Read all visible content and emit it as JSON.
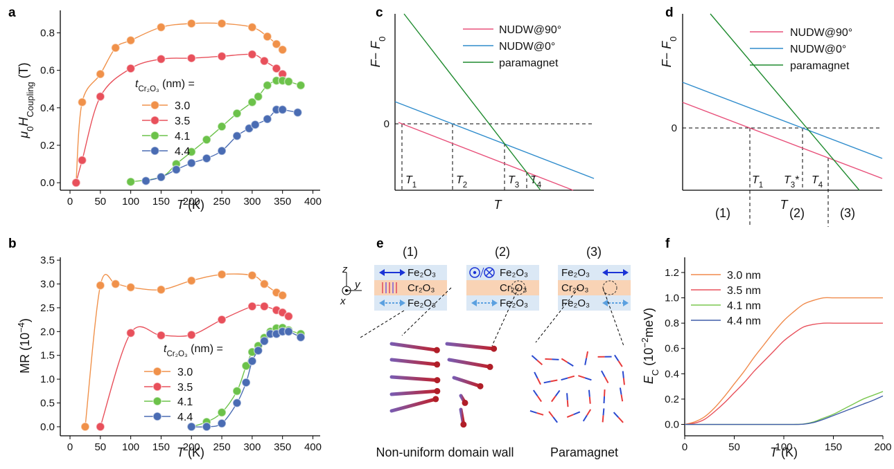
{
  "chart_data": [
    {
      "type": "line",
      "panel": "a",
      "markers": true,
      "xlabel": [
        "T",
        " (K)"
      ],
      "ylabel": [
        "μ",
        "0",
        "H",
        "Coupling",
        " (T)"
      ],
      "legend_title": [
        "t",
        "Cr₂O₃",
        " (nm) ="
      ],
      "xlim": [
        -16,
        412
      ],
      "ylim": [
        -0.04,
        0.92
      ],
      "xticks": [
        0,
        50,
        100,
        150,
        200,
        250,
        300,
        350,
        400
      ],
      "yticks": [
        {
          "value": 0,
          "label": "0.0"
        },
        0.2,
        0.4,
        0.6,
        0.8
      ],
      "series": [
        {
          "name": "3.0",
          "color": "#f0914a",
          "x": [
            10,
            20,
            50,
            75,
            100,
            150,
            200,
            250,
            300,
            325,
            340,
            350
          ],
          "values": [
            0,
            0.43,
            0.58,
            0.72,
            0.76,
            0.83,
            0.85,
            0.85,
            0.83,
            0.78,
            0.74,
            0.71
          ]
        },
        {
          "name": "3.5",
          "color": "#e8505b",
          "x": [
            10,
            20,
            50,
            100,
            150,
            200,
            250,
            300,
            320,
            340,
            350,
            360
          ],
          "values": [
            0,
            0.12,
            0.46,
            0.61,
            0.66,
            0.665,
            0.675,
            0.685,
            0.65,
            0.61,
            0.58,
            0.54
          ]
        },
        {
          "name": "4.1",
          "color": "#6cc24a",
          "x": [
            100,
            150,
            175,
            200,
            225,
            250,
            275,
            300,
            310,
            325,
            340,
            350,
            360,
            380
          ],
          "values": [
            0.005,
            0.03,
            0.1,
            0.165,
            0.23,
            0.3,
            0.37,
            0.43,
            0.46,
            0.52,
            0.545,
            0.545,
            0.54,
            0.52
          ]
        },
        {
          "name": "4.4",
          "color": "#4a6cb3",
          "x": [
            125,
            150,
            175,
            200,
            225,
            250,
            275,
            295,
            305,
            325,
            340,
            350,
            375
          ],
          "values": [
            0.01,
            0.03,
            0.07,
            0.105,
            0.13,
            0.17,
            0.25,
            0.29,
            0.31,
            0.34,
            0.39,
            0.39,
            0.375
          ]
        }
      ]
    },
    {
      "type": "line",
      "panel": "b",
      "markers": true,
      "xlabel": [
        "T",
        " (K)"
      ],
      "ylabel": [
        "MR (10",
        "−4",
        ")"
      ],
      "legend_title": [
        "t",
        "Cr₂O₃",
        " (nm) ="
      ],
      "xlim": [
        -16,
        412
      ],
      "ylim": [
        -0.19,
        3.56
      ],
      "xticks": [
        0,
        50,
        100,
        150,
        200,
        250,
        300,
        350,
        400
      ],
      "yticks": [
        {
          "value": 0,
          "label": "0.0"
        },
        0.5,
        {
          "value": 1,
          "label": "1.0"
        },
        1.5,
        {
          "value": 2,
          "label": "2.0"
        },
        2.5,
        {
          "value": 3,
          "label": "3.0"
        },
        3.5
      ],
      "series": [
        {
          "name": "3.0",
          "color": "#f0914a",
          "x": [
            25,
            50,
            75,
            100,
            150,
            200,
            250,
            300,
            320,
            340,
            350
          ],
          "values": [
            0,
            2.97,
            3.0,
            2.93,
            2.88,
            3.07,
            3.2,
            3.18,
            3.0,
            2.82,
            2.76
          ]
        },
        {
          "name": "3.5",
          "color": "#e8505b",
          "x": [
            50,
            100,
            150,
            200,
            250,
            300,
            320,
            340,
            350,
            360
          ],
          "values": [
            0,
            1.97,
            1.92,
            1.93,
            2.25,
            2.53,
            2.53,
            2.45,
            2.4,
            2.32
          ]
        },
        {
          "name": "4.1",
          "color": "#6cc24a",
          "x": [
            200,
            225,
            250,
            275,
            290,
            300,
            310,
            320,
            330,
            340,
            350,
            360,
            380
          ],
          "values": [
            0,
            0.1,
            0.3,
            0.75,
            1.28,
            1.57,
            1.7,
            1.87,
            2.0,
            2.07,
            2.08,
            2.03,
            1.95
          ]
        },
        {
          "name": "4.4",
          "color": "#4a6cb3",
          "x": [
            200,
            225,
            250,
            275,
            290,
            300,
            310,
            320,
            330,
            340,
            350,
            360,
            380
          ],
          "values": [
            0,
            0,
            0.07,
            0.5,
            0.93,
            1.38,
            1.6,
            1.8,
            1.95,
            1.95,
            2.0,
            2.0,
            1.88
          ]
        }
      ]
    },
    {
      "type": "line",
      "panel": "c",
      "xlabel": [
        "T"
      ],
      "ylabel": [
        "F",
        "− ",
        "F",
        "0"
      ],
      "xlim": [
        0,
        287
      ],
      "ylim": [
        -96,
        159
      ],
      "yticks": [
        0
      ],
      "series": [
        {
          "name": "NUDW@90°",
          "color": "#e8507a",
          "x": [
            5,
            257
          ],
          "values": [
            2,
            -96
          ]
        },
        {
          "name": "NUDW@0°",
          "color": "#2f8ccc",
          "x": [
            0,
            287
          ],
          "values": [
            32,
            -79
          ]
        },
        {
          "name": "paramagnet",
          "color": "#1e8a2e",
          "x": [
            13,
            210
          ],
          "values": [
            159,
            -96
          ]
        }
      ],
      "annotations": [
        {
          "label": [
            "T",
            "1"
          ],
          "x": 10,
          "y": 0
        },
        {
          "label": [
            "T",
            "2"
          ],
          "x": 83,
          "y": 0
        },
        {
          "label": [
            "T",
            "3"
          ],
          "x": 158,
          "y": -28
        },
        {
          "label": [
            "T",
            "4"
          ],
          "x": 190,
          "y": -70
        }
      ]
    },
    {
      "type": "line",
      "panel": "d",
      "xlabel": [
        "T"
      ],
      "ylabel": [
        "F",
        "− ",
        "F",
        "0"
      ],
      "xlim": [
        0,
        288
      ],
      "ylim": [
        -90,
        165
      ],
      "yticks": [
        0
      ],
      "series": [
        {
          "name": "NUDW@90°",
          "color": "#e8507a",
          "x": [
            0,
            288
          ],
          "values": [
            37,
            -73
          ]
        },
        {
          "name": "NUDW@0°",
          "color": "#2f8ccc",
          "x": [
            0,
            288
          ],
          "values": [
            66,
            -44
          ]
        },
        {
          "name": "paramagnet",
          "color": "#1e8a2e",
          "x": [
            40,
            255
          ],
          "values": [
            165,
            -90
          ]
        }
      ],
      "annotations": [
        {
          "label": [
            "T",
            "1"
          ],
          "x": 97,
          "y": 0
        },
        {
          "label": [
            "T",
            "3",
            "*"
          ],
          "x": 173,
          "y": 0
        },
        {
          "label": [
            "T",
            "4"
          ],
          "x": 210,
          "y": -43
        }
      ],
      "regions": [
        "(1)",
        "(2)",
        "(3)"
      ]
    },
    {
      "type": "line",
      "panel": "f",
      "xlabel": [
        "T",
        " (K)"
      ],
      "ylabel": [
        "E",
        "C",
        " (10",
        "−2",
        "meV)"
      ],
      "xlim": [
        0,
        200
      ],
      "ylim": [
        -0.09,
        1.32
      ],
      "xticks": [
        0,
        50,
        100,
        150,
        200
      ],
      "yticks": [
        {
          "value": 0,
          "label": "0.0"
        },
        0.2,
        0.4,
        0.6,
        0.8,
        {
          "value": 1,
          "label": "1.0"
        },
        1.2
      ],
      "x": [
        0,
        10,
        20,
        30,
        40,
        50,
        60,
        70,
        80,
        90,
        100,
        110,
        120,
        130,
        140,
        150,
        160,
        170,
        180,
        190,
        200
      ],
      "series": [
        {
          "name": "3.0 nm",
          "color": "#f08a4b",
          "values": [
            0,
            0.02,
            0.06,
            0.13,
            0.22,
            0.32,
            0.42,
            0.53,
            0.63,
            0.73,
            0.82,
            0.89,
            0.95,
            0.98,
            1.0,
            1.0,
            1.0,
            1.0,
            1.0,
            1.0,
            1.0
          ]
        },
        {
          "name": "3.5 nm",
          "color": "#e8505b",
          "values": [
            0,
            0.01,
            0.04,
            0.1,
            0.17,
            0.25,
            0.33,
            0.42,
            0.5,
            0.58,
            0.66,
            0.72,
            0.77,
            0.79,
            0.8,
            0.8,
            0.8,
            0.8,
            0.8,
            0.8,
            0.8
          ]
        },
        {
          "name": "4.1 nm",
          "color": "#7ac74f",
          "values": [
            0,
            0,
            0,
            0,
            0,
            0,
            0,
            0,
            0,
            0,
            0,
            0,
            0.003,
            0.02,
            0.05,
            0.08,
            0.12,
            0.16,
            0.2,
            0.23,
            0.26
          ]
        },
        {
          "name": "4.4 nm",
          "color": "#3e5ba9",
          "values": [
            0,
            0,
            0,
            0,
            0,
            0,
            0,
            0,
            0,
            0,
            0,
            0,
            0.002,
            0.015,
            0.04,
            0.07,
            0.1,
            0.13,
            0.16,
            0.19,
            0.225
          ]
        }
      ]
    }
  ],
  "diagram": {
    "panel": "e",
    "axes": [
      "z",
      "y",
      "x"
    ],
    "columns": [
      {
        "label": "(1)",
        "layers": [
          "Fe₂O₃",
          "Cr₂O₃",
          "Fe₂O₃"
        ]
      },
      {
        "label": "(2)",
        "layers": [
          "Fe₂O₃",
          "Cr₂O₃",
          "Fe₂O₃"
        ]
      },
      {
        "label": "(3)",
        "layers": [
          "Fe₂O₃",
          "Cr₂O₃",
          "Fe₂O₃"
        ]
      }
    ],
    "captions": [
      "Non-uniform domain wall",
      "Paramagnet"
    ]
  }
}
